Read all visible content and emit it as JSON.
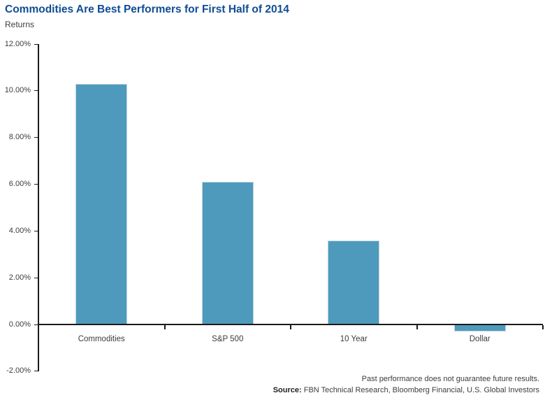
{
  "header": {
    "title": "Commodities Are Best Performers for First Half of 2014",
    "subtitle": "Returns"
  },
  "chart_data": {
    "type": "bar",
    "title": "Commodities Are Best Performers for First Half of 2014",
    "ylabel": "Returns",
    "xlabel": "",
    "categories": [
      "Commodities",
      "S&P 500",
      "10 Year",
      "Dollar"
    ],
    "values": [
      10.3,
      6.1,
      3.6,
      -0.3
    ],
    "ylim": [
      -2,
      12
    ],
    "ytick_step": 2,
    "yticks": [
      {
        "value": 12,
        "label": "12.00%"
      },
      {
        "value": 10,
        "label": "10.00%"
      },
      {
        "value": 8,
        "label": "8.00%"
      },
      {
        "value": 6,
        "label": "6.00%"
      },
      {
        "value": 4,
        "label": "4.00%"
      },
      {
        "value": 2,
        "label": "2.00%"
      },
      {
        "value": 0,
        "label": "0.00%"
      },
      {
        "value": -2,
        "label": "-2.00%"
      }
    ],
    "grid": false,
    "legend": null
  },
  "colors": {
    "title": "#0F4C93",
    "bar": "#4E9ABC",
    "bar_border": "#BCD4E2",
    "axis": "#1A1A1A",
    "text": "#3C3C3C"
  },
  "footer": {
    "disclaimer": "Past performance does not guarantee future results.",
    "source_label": "Source:",
    "source_text": "FBN Technical Research, Bloomberg Financial, U.S. Global Investors"
  }
}
